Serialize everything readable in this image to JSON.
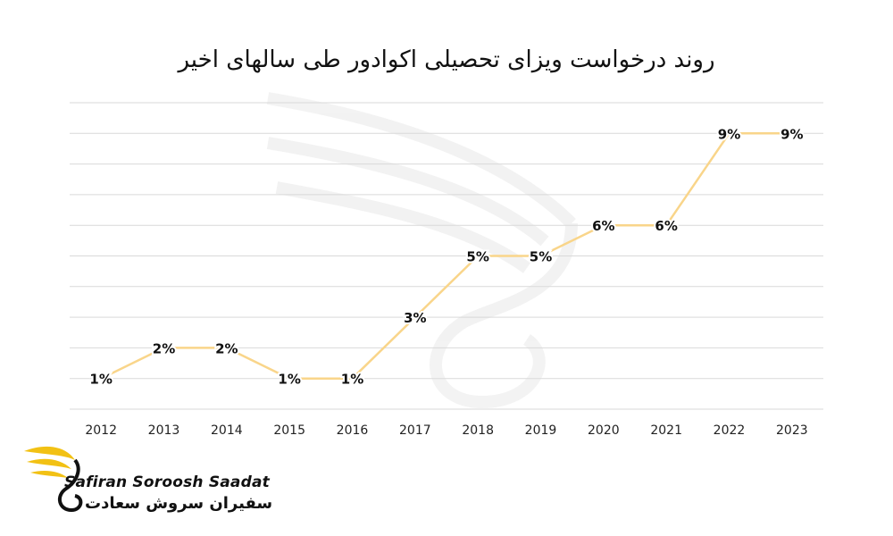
{
  "chart_data": {
    "type": "line",
    "title": "روند درخواست ویزای تحصیلی اکوادور طی سالهای اخیر",
    "categories": [
      "2012",
      "2013",
      "2014",
      "2015",
      "2016",
      "2017",
      "2018",
      "2019",
      "2020",
      "2021",
      "2022",
      "2023"
    ],
    "values": [
      1,
      2,
      2,
      1,
      1,
      3,
      5,
      5,
      6,
      6,
      9,
      9
    ],
    "data_labels": [
      "1%",
      "2%",
      "2%",
      "1%",
      "1%",
      "3%",
      "5%",
      "5%",
      "6%",
      "6%",
      "9%",
      "9%"
    ],
    "ylim": [
      0,
      10
    ],
    "grid": true,
    "legend": "none",
    "line_color": "#F9D58A"
  },
  "logo": {
    "text_en": "Safiran Soroosh Saadat",
    "text_fa": "سفیران سروش سعادت",
    "accent": "#F2C114"
  }
}
